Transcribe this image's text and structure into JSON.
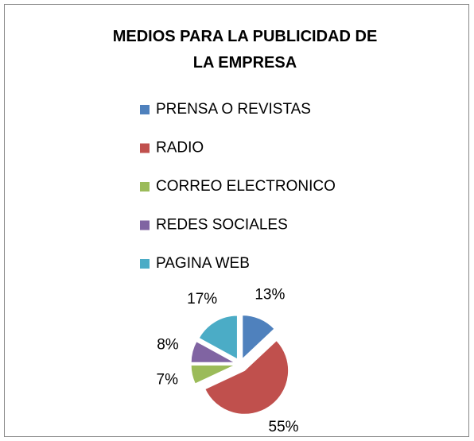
{
  "chart_data": {
    "type": "pie",
    "title": "MEDIOS PARA LA PUBLICIDAD DE LA EMPRESA",
    "categories": [
      "PRENSA O REVISTAS",
      "RADIO",
      "CORREO ELECTRONICO",
      "REDES SOCIALES",
      "PAGINA WEB"
    ],
    "values": [
      13,
      55,
      7,
      8,
      17
    ],
    "value_labels": [
      "13%",
      "55%",
      "7%",
      "8%",
      "17%"
    ],
    "colors": [
      "#4f81bd",
      "#c0504d",
      "#9bbb59",
      "#8064a2",
      "#4bacc6"
    ]
  }
}
